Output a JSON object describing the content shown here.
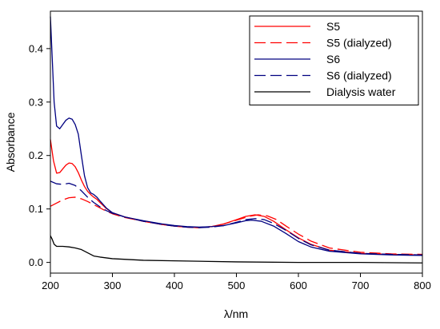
{
  "chart_data": {
    "type": "line",
    "title": "",
    "xlabel": "λ/nm",
    "ylabel": "Absorbance",
    "xlim": [
      200,
      800
    ],
    "ylim": [
      -0.02,
      0.47
    ],
    "grid": false,
    "legend_position": "top-right",
    "x_ticks": [
      200,
      300,
      400,
      500,
      600,
      700,
      800
    ],
    "x_tick_labels": [
      "200",
      "300",
      "400",
      "500",
      "600",
      "700",
      "800"
    ],
    "y_ticks": [
      0.0,
      0.1,
      0.2,
      0.3,
      0.4
    ],
    "y_tick_labels": [
      "0.0",
      "0.1",
      "0.2",
      "0.3",
      "0.4"
    ],
    "series": [
      {
        "name": "S5",
        "color": "#ff0000",
        "dash": "solid",
        "points": [
          [
            200,
            0.23
          ],
          [
            205,
            0.19
          ],
          [
            210,
            0.167
          ],
          [
            215,
            0.168
          ],
          [
            220,
            0.175
          ],
          [
            225,
            0.182
          ],
          [
            230,
            0.186
          ],
          [
            235,
            0.185
          ],
          [
            240,
            0.179
          ],
          [
            245,
            0.168
          ],
          [
            250,
            0.154
          ],
          [
            255,
            0.142
          ],
          [
            260,
            0.133
          ],
          [
            265,
            0.127
          ],
          [
            270,
            0.122
          ],
          [
            275,
            0.118
          ],
          [
            280,
            0.112
          ],
          [
            290,
            0.101
          ],
          [
            300,
            0.093
          ],
          [
            320,
            0.085
          ],
          [
            350,
            0.077
          ],
          [
            380,
            0.071
          ],
          [
            400,
            0.068
          ],
          [
            420,
            0.066
          ],
          [
            440,
            0.065
          ],
          [
            460,
            0.067
          ],
          [
            480,
            0.072
          ],
          [
            500,
            0.08
          ],
          [
            515,
            0.086
          ],
          [
            530,
            0.089
          ],
          [
            545,
            0.086
          ],
          [
            560,
            0.077
          ],
          [
            580,
            0.061
          ],
          [
            600,
            0.046
          ],
          [
            620,
            0.034
          ],
          [
            650,
            0.023
          ],
          [
            700,
            0.017
          ],
          [
            750,
            0.015
          ],
          [
            800,
            0.014
          ]
        ]
      },
      {
        "name": "S5 (dialyzed)",
        "color": "#ff0000",
        "dash": "long-dash",
        "points": [
          [
            200,
            0.105
          ],
          [
            210,
            0.111
          ],
          [
            220,
            0.117
          ],
          [
            230,
            0.121
          ],
          [
            240,
            0.122
          ],
          [
            250,
            0.119
          ],
          [
            260,
            0.114
          ],
          [
            270,
            0.108
          ],
          [
            280,
            0.102
          ],
          [
            290,
            0.096
          ],
          [
            300,
            0.091
          ],
          [
            320,
            0.084
          ],
          [
            350,
            0.077
          ],
          [
            380,
            0.071
          ],
          [
            400,
            0.068
          ],
          [
            420,
            0.066
          ],
          [
            440,
            0.065
          ],
          [
            460,
            0.067
          ],
          [
            480,
            0.072
          ],
          [
            500,
            0.079
          ],
          [
            520,
            0.086
          ],
          [
            535,
            0.089
          ],
          [
            550,
            0.087
          ],
          [
            565,
            0.08
          ],
          [
            580,
            0.068
          ],
          [
            600,
            0.053
          ],
          [
            620,
            0.04
          ],
          [
            650,
            0.027
          ],
          [
            700,
            0.019
          ],
          [
            750,
            0.016
          ],
          [
            800,
            0.015
          ]
        ]
      },
      {
        "name": "S6",
        "color": "#000080",
        "dash": "solid",
        "points": [
          [
            200,
            0.46
          ],
          [
            203,
            0.38
          ],
          [
            206,
            0.3
          ],
          [
            210,
            0.255
          ],
          [
            215,
            0.25
          ],
          [
            220,
            0.258
          ],
          [
            225,
            0.266
          ],
          [
            230,
            0.27
          ],
          [
            235,
            0.268
          ],
          [
            240,
            0.258
          ],
          [
            245,
            0.24
          ],
          [
            250,
            0.2
          ],
          [
            255,
            0.162
          ],
          [
            260,
            0.14
          ],
          [
            265,
            0.13
          ],
          [
            270,
            0.127
          ],
          [
            275,
            0.122
          ],
          [
            280,
            0.115
          ],
          [
            290,
            0.102
          ],
          [
            300,
            0.093
          ],
          [
            320,
            0.085
          ],
          [
            350,
            0.078
          ],
          [
            380,
            0.072
          ],
          [
            400,
            0.069
          ],
          [
            420,
            0.067
          ],
          [
            440,
            0.066
          ],
          [
            460,
            0.067
          ],
          [
            480,
            0.069
          ],
          [
            500,
            0.074
          ],
          [
            515,
            0.078
          ],
          [
            525,
            0.079
          ],
          [
            540,
            0.077
          ],
          [
            560,
            0.068
          ],
          [
            580,
            0.054
          ],
          [
            600,
            0.039
          ],
          [
            620,
            0.029
          ],
          [
            650,
            0.021
          ],
          [
            700,
            0.016
          ],
          [
            750,
            0.014
          ],
          [
            800,
            0.013
          ]
        ]
      },
      {
        "name": "S6 (dialyzed)",
        "color": "#000080",
        "dash": "long-dash",
        "points": [
          [
            200,
            0.152
          ],
          [
            210,
            0.147
          ],
          [
            220,
            0.146
          ],
          [
            230,
            0.148
          ],
          [
            240,
            0.144
          ],
          [
            250,
            0.134
          ],
          [
            260,
            0.122
          ],
          [
            270,
            0.112
          ],
          [
            280,
            0.104
          ],
          [
            290,
            0.097
          ],
          [
            300,
            0.092
          ],
          [
            320,
            0.085
          ],
          [
            350,
            0.077
          ],
          [
            380,
            0.071
          ],
          [
            400,
            0.068
          ],
          [
            420,
            0.066
          ],
          [
            440,
            0.065
          ],
          [
            460,
            0.066
          ],
          [
            480,
            0.069
          ],
          [
            500,
            0.075
          ],
          [
            515,
            0.08
          ],
          [
            530,
            0.082
          ],
          [
            545,
            0.08
          ],
          [
            560,
            0.073
          ],
          [
            580,
            0.06
          ],
          [
            600,
            0.045
          ],
          [
            620,
            0.033
          ],
          [
            650,
            0.023
          ],
          [
            700,
            0.017
          ],
          [
            750,
            0.015
          ],
          [
            800,
            0.014
          ]
        ]
      },
      {
        "name": "Dialysis water",
        "color": "#000000",
        "dash": "solid",
        "points": [
          [
            200,
            0.05
          ],
          [
            203,
            0.043
          ],
          [
            206,
            0.034
          ],
          [
            210,
            0.03
          ],
          [
            220,
            0.03
          ],
          [
            230,
            0.029
          ],
          [
            240,
            0.027
          ],
          [
            250,
            0.024
          ],
          [
            260,
            0.018
          ],
          [
            270,
            0.012
          ],
          [
            280,
            0.01
          ],
          [
            300,
            0.007
          ],
          [
            350,
            0.004
          ],
          [
            400,
            0.003
          ],
          [
            500,
            0.001
          ],
          [
            600,
            0.0
          ],
          [
            700,
            0.0
          ],
          [
            800,
            -0.001
          ]
        ]
      }
    ]
  }
}
